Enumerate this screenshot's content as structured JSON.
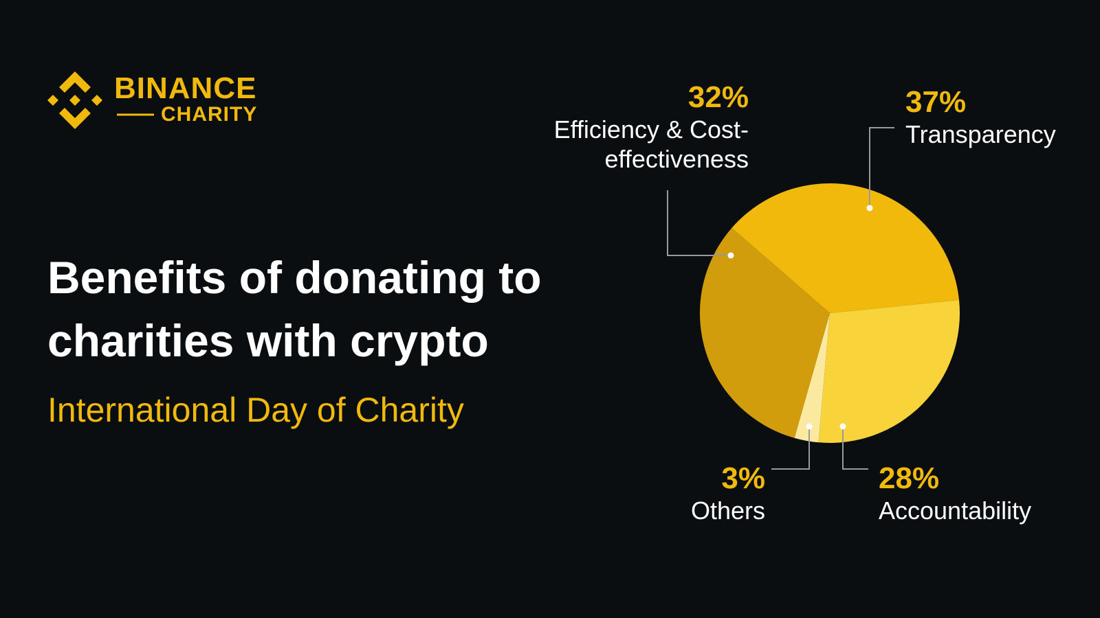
{
  "brand": {
    "name": "BINANCE",
    "sub": "CHARITY"
  },
  "chart_data": {
    "type": "pie",
    "title": "Benefits of donating to charities with crypto",
    "subtitle": "International Day of Charity",
    "categories": [
      "Transparency",
      "Accountability",
      "Others",
      "Efficiency & Cost-effectiveness"
    ],
    "values": [
      37,
      28,
      3,
      32
    ],
    "value_labels": [
      "37%",
      "28%",
      "3%",
      "32%"
    ],
    "colors": [
      "#F0B90B",
      "#F8D33A",
      "#FCE9A0",
      "#D29D0C"
    ]
  }
}
